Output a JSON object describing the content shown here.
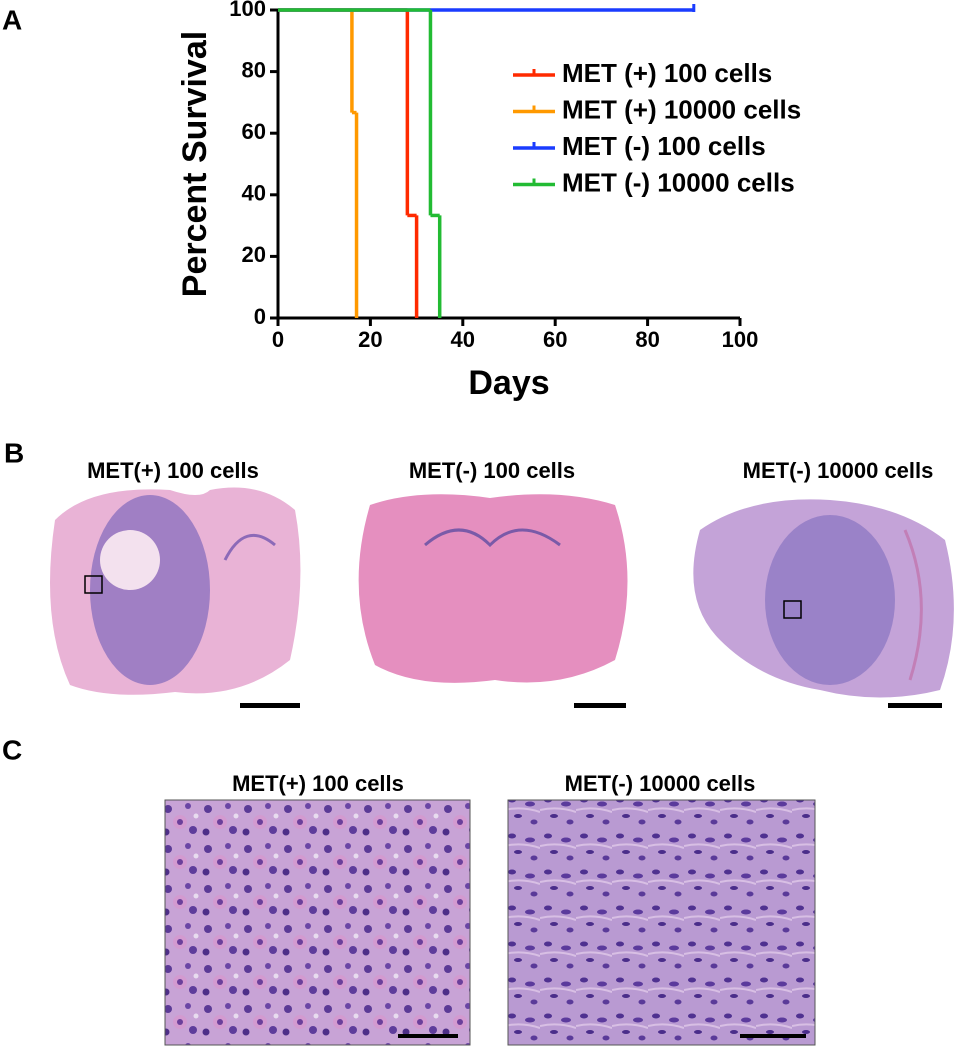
{
  "chart_data": {
    "type": "step",
    "panel": "A",
    "x_label": "Days",
    "y_label": "Percent Survival",
    "xlim": [
      0,
      100
    ],
    "xticks": [
      0,
      20,
      40,
      60,
      80,
      100
    ],
    "ylim": [
      0,
      100
    ],
    "yticks": [
      0,
      20,
      40,
      60,
      80,
      100
    ],
    "series": [
      {
        "name": "MET (+) 100 cells",
        "color": "#ff2a00",
        "x": [
          0,
          28,
          30
        ],
        "values": [
          100,
          33.3,
          0
        ]
      },
      {
        "name": "MET (+) 10000 cells",
        "color": "#ff9900",
        "x": [
          0,
          16,
          17
        ],
        "values": [
          100,
          66.7,
          0
        ]
      },
      {
        "name": "MET (-) 100 cells",
        "color": "#1a3cff",
        "x": [
          0,
          90
        ],
        "values": [
          100,
          100
        ]
      },
      {
        "name": "MET (-) 10000 cells",
        "color": "#22bb33",
        "x": [
          0,
          33,
          35
        ],
        "values": [
          100,
          33.3,
          0
        ]
      }
    ]
  },
  "panel_b": {
    "letter": "B",
    "titles": [
      "MET(+) 100 cells",
      "MET(-) 100 cells",
      "MET(-) 10000 cells"
    ]
  },
  "panel_c": {
    "letter": "C",
    "titles": [
      "MET(+) 100 cells",
      "MET(-) 10000 cells"
    ]
  }
}
